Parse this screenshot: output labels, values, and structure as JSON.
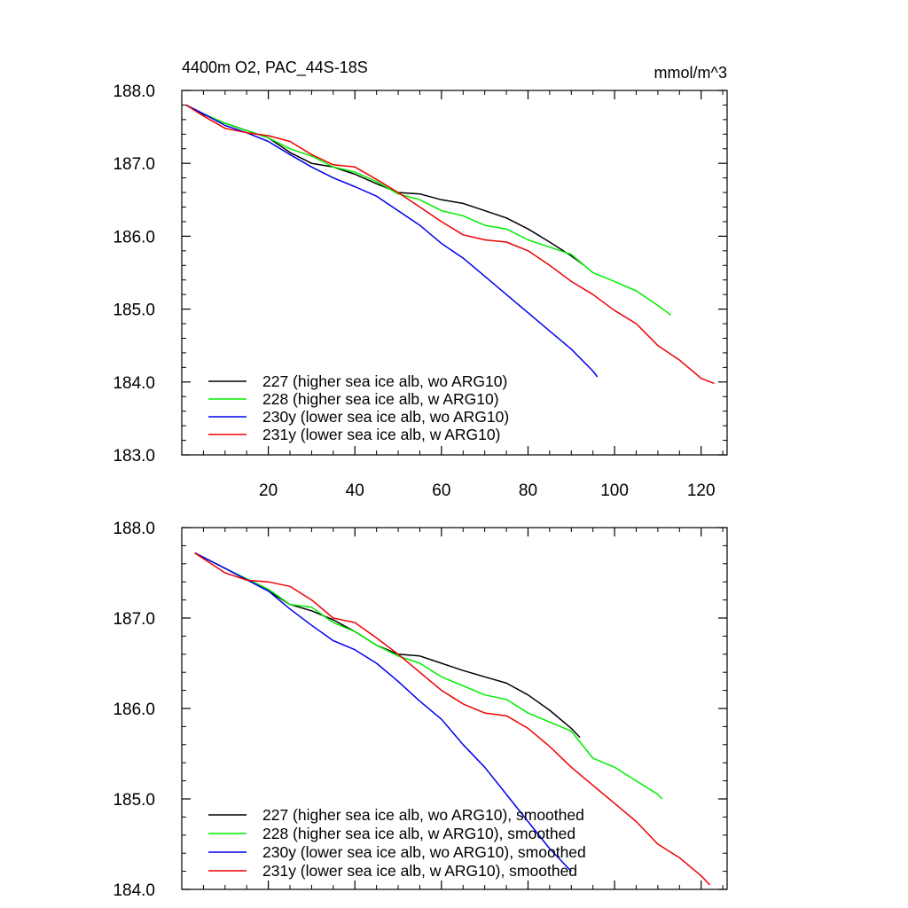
{
  "chart_data": [
    {
      "type": "line",
      "title": "4400m O2, PAC_44S-18S",
      "units": "mmol/m^3",
      "xlabel": "",
      "ylabel": "",
      "xlim": [
        0,
        126
      ],
      "ylim": [
        183.0,
        188.0
      ],
      "x_ticks": [
        20,
        40,
        60,
        80,
        100,
        120
      ],
      "y_ticks": [
        "183.0",
        "184.0",
        "185.0",
        "186.0",
        "187.0",
        "188.0"
      ],
      "legend_position": "bottom-left",
      "series": [
        {
          "name": "227 (higher sea ice alb, wo ARG10)",
          "color": "#000000",
          "points": [
            [
              1,
              187.8
            ],
            [
              5,
              187.67
            ],
            [
              10,
              187.55
            ],
            [
              15,
              187.45
            ],
            [
              20,
              187.35
            ],
            [
              25,
              187.15
            ],
            [
              30,
              187.0
            ],
            [
              35,
              186.95
            ],
            [
              40,
              186.85
            ],
            [
              45,
              186.72
            ],
            [
              50,
              186.6
            ],
            [
              55,
              186.58
            ],
            [
              60,
              186.5
            ],
            [
              65,
              186.45
            ],
            [
              70,
              186.35
            ],
            [
              75,
              186.25
            ],
            [
              80,
              186.1
            ],
            [
              85,
              185.92
            ],
            [
              90,
              185.73
            ],
            [
              93,
              185.6
            ]
          ]
        },
        {
          "name": "228 (higher sea ice alb, w ARG10)",
          "color": "#00ee00",
          "points": [
            [
              1,
              187.8
            ],
            [
              5,
              187.68
            ],
            [
              10,
              187.55
            ],
            [
              15,
              187.45
            ],
            [
              20,
              187.35
            ],
            [
              25,
              187.2
            ],
            [
              30,
              187.1
            ],
            [
              35,
              186.95
            ],
            [
              40,
              186.88
            ],
            [
              45,
              186.75
            ],
            [
              50,
              186.58
            ],
            [
              55,
              186.5
            ],
            [
              60,
              186.35
            ],
            [
              65,
              186.28
            ],
            [
              70,
              186.15
            ],
            [
              75,
              186.1
            ],
            [
              80,
              185.95
            ],
            [
              85,
              185.85
            ],
            [
              90,
              185.75
            ],
            [
              95,
              185.5
            ],
            [
              100,
              185.38
            ],
            [
              105,
              185.25
            ],
            [
              110,
              185.05
            ],
            [
              113,
              184.92
            ]
          ]
        },
        {
          "name": "230y (lower sea ice alb, wo ARG10)",
          "color": "#0000ee",
          "points": [
            [
              1,
              187.8
            ],
            [
              5,
              187.68
            ],
            [
              10,
              187.52
            ],
            [
              15,
              187.42
            ],
            [
              20,
              187.3
            ],
            [
              25,
              187.12
            ],
            [
              30,
              186.95
            ],
            [
              35,
              186.8
            ],
            [
              40,
              186.68
            ],
            [
              45,
              186.55
            ],
            [
              50,
              186.35
            ],
            [
              55,
              186.15
            ],
            [
              60,
              185.9
            ],
            [
              65,
              185.7
            ],
            [
              70,
              185.45
            ],
            [
              75,
              185.2
            ],
            [
              80,
              184.95
            ],
            [
              85,
              184.7
            ],
            [
              90,
              184.45
            ],
            [
              95,
              184.15
            ],
            [
              96,
              184.07
            ]
          ]
        },
        {
          "name": "231y (lower sea ice alb, w ARG10)",
          "color": "#ee0000",
          "points": [
            [
              1,
              187.8
            ],
            [
              5,
              187.65
            ],
            [
              10,
              187.48
            ],
            [
              15,
              187.42
            ],
            [
              20,
              187.38
            ],
            [
              25,
              187.3
            ],
            [
              30,
              187.12
            ],
            [
              35,
              186.98
            ],
            [
              40,
              186.95
            ],
            [
              45,
              186.78
            ],
            [
              50,
              186.6
            ],
            [
              55,
              186.4
            ],
            [
              60,
              186.2
            ],
            [
              65,
              186.02
            ],
            [
              70,
              185.95
            ],
            [
              75,
              185.92
            ],
            [
              80,
              185.8
            ],
            [
              85,
              185.6
            ],
            [
              90,
              185.38
            ],
            [
              95,
              185.2
            ],
            [
              100,
              184.98
            ],
            [
              105,
              184.8
            ],
            [
              110,
              184.5
            ],
            [
              115,
              184.3
            ],
            [
              120,
              184.05
            ],
            [
              123,
              183.98
            ]
          ]
        }
      ]
    },
    {
      "type": "line",
      "title": "",
      "xlabel": "",
      "ylabel": "",
      "xlim": [
        0,
        126
      ],
      "ylim": [
        184.0,
        188.0
      ],
      "y_ticks": [
        "184.0",
        "185.0",
        "186.0",
        "187.0",
        "188.0"
      ],
      "legend_position": "bottom-left",
      "series": [
        {
          "name": "227 (higher sea ice alb, wo ARG10), smoothed",
          "color": "#000000",
          "points": [
            [
              3,
              187.72
            ],
            [
              10,
              187.55
            ],
            [
              20,
              187.3
            ],
            [
              25,
              187.15
            ],
            [
              30,
              187.08
            ],
            [
              35,
              186.98
            ],
            [
              40,
              186.85
            ],
            [
              45,
              186.7
            ],
            [
              50,
              186.6
            ],
            [
              55,
              186.58
            ],
            [
              60,
              186.5
            ],
            [
              65,
              186.42
            ],
            [
              70,
              186.35
            ],
            [
              75,
              186.28
            ],
            [
              80,
              186.15
            ],
            [
              85,
              185.98
            ],
            [
              90,
              185.78
            ],
            [
              92,
              185.68
            ]
          ]
        },
        {
          "name": "228 (higher sea ice alb, w ARG10), smoothed",
          "color": "#00ee00",
          "points": [
            [
              3,
              187.72
            ],
            [
              10,
              187.55
            ],
            [
              20,
              187.32
            ],
            [
              25,
              187.15
            ],
            [
              30,
              187.12
            ],
            [
              35,
              186.95
            ],
            [
              40,
              186.85
            ],
            [
              45,
              186.7
            ],
            [
              50,
              186.58
            ],
            [
              55,
              186.5
            ],
            [
              60,
              186.35
            ],
            [
              65,
              186.25
            ],
            [
              70,
              186.15
            ],
            [
              75,
              186.1
            ],
            [
              80,
              185.95
            ],
            [
              85,
              185.85
            ],
            [
              90,
              185.75
            ],
            [
              95,
              185.45
            ],
            [
              100,
              185.35
            ],
            [
              105,
              185.2
            ],
            [
              110,
              185.05
            ],
            [
              111,
              185.0
            ]
          ]
        },
        {
          "name": "230y (lower sea ice alb, wo ARG10), smoothed",
          "color": "#0000ee",
          "points": [
            [
              3,
              187.72
            ],
            [
              10,
              187.55
            ],
            [
              20,
              187.3
            ],
            [
              25,
              187.1
            ],
            [
              30,
              186.92
            ],
            [
              35,
              186.75
            ],
            [
              40,
              186.65
            ],
            [
              45,
              186.5
            ],
            [
              50,
              186.3
            ],
            [
              55,
              186.08
            ],
            [
              60,
              185.88
            ],
            [
              65,
              185.6
            ],
            [
              70,
              185.35
            ],
            [
              75,
              185.05
            ],
            [
              80,
              184.75
            ],
            [
              85,
              184.45
            ],
            [
              90,
              184.2
            ]
          ]
        },
        {
          "name": "231y (lower sea ice alb, w ARG10), smoothed",
          "color": "#ee0000",
          "points": [
            [
              3,
              187.72
            ],
            [
              10,
              187.5
            ],
            [
              15,
              187.42
            ],
            [
              20,
              187.4
            ],
            [
              25,
              187.35
            ],
            [
              30,
              187.2
            ],
            [
              35,
              187.0
            ],
            [
              40,
              186.95
            ],
            [
              45,
              186.78
            ],
            [
              50,
              186.6
            ],
            [
              55,
              186.4
            ],
            [
              60,
              186.2
            ],
            [
              65,
              186.05
            ],
            [
              70,
              185.95
            ],
            [
              75,
              185.92
            ],
            [
              80,
              185.78
            ],
            [
              85,
              185.58
            ],
            [
              90,
              185.35
            ],
            [
              95,
              185.15
            ],
            [
              100,
              184.95
            ],
            [
              105,
              184.75
            ],
            [
              110,
              184.5
            ],
            [
              115,
              184.35
            ],
            [
              120,
              184.15
            ],
            [
              122,
              184.05
            ]
          ]
        }
      ]
    }
  ]
}
